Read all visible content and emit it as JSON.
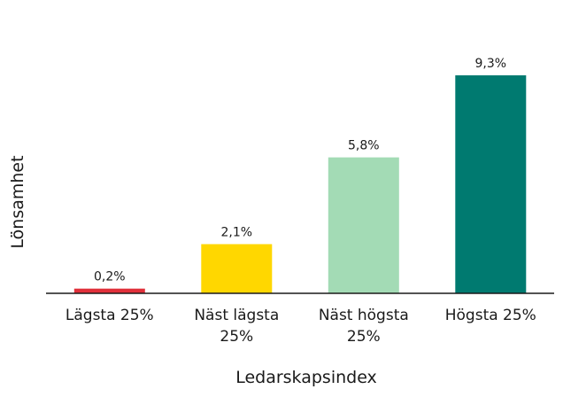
{
  "chart_data": {
    "type": "bar",
    "title": "",
    "xlabel": "Ledarskapsindex",
    "ylabel": "Lönsamhet",
    "categories": [
      [
        "Lägsta 25%"
      ],
      [
        "Näst lägsta",
        "25%"
      ],
      [
        "Näst högsta",
        "25%"
      ],
      [
        "Högsta 25%"
      ]
    ],
    "values": [
      0.2,
      2.1,
      5.8,
      9.3
    ],
    "value_labels": [
      "0,2%",
      "2,1%",
      "5,8%",
      "9,3%"
    ],
    "unit": "%",
    "ylim": [
      0,
      9.3
    ],
    "grid": false,
    "legend": "none",
    "colors": [
      "#e0303a",
      "#ffd700",
      "#a3dbb5",
      "#007a70"
    ],
    "axis_color": "#1a1a1a"
  }
}
